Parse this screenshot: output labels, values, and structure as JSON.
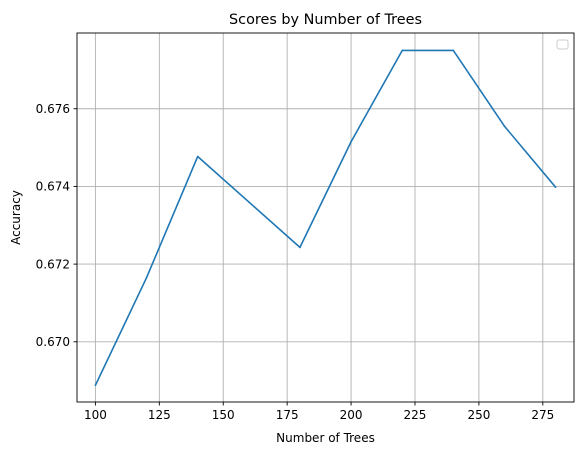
{
  "chart_data": {
    "type": "line",
    "title": "Scores by Number of Trees",
    "xlabel": "Number of Trees",
    "ylabel": "Accuracy",
    "x": [
      100,
      120,
      140,
      160,
      180,
      200,
      220,
      240,
      260,
      280
    ],
    "series": [
      {
        "values": [
          0.66888,
          0.67165,
          0.67477,
          0.6736,
          0.67243,
          0.67515,
          0.6775,
          0.6775,
          0.67555,
          0.67398
        ],
        "color": "#1f77b4"
      }
    ],
    "xlim": [
      92.8,
      287.2
    ],
    "ylim": [
      0.66845,
      0.67795
    ],
    "xticks": [
      100,
      125,
      150,
      175,
      200,
      225,
      250,
      275
    ],
    "xtick_labels": [
      "100",
      "125",
      "150",
      "175",
      "200",
      "225",
      "250",
      "275"
    ],
    "yticks": [
      0.67,
      0.672,
      0.674,
      0.676
    ],
    "ytick_labels": [
      "0.670",
      "0.672",
      "0.674",
      "0.676"
    ],
    "grid": true,
    "legend": {
      "placement": "upper-right",
      "entries": []
    }
  }
}
